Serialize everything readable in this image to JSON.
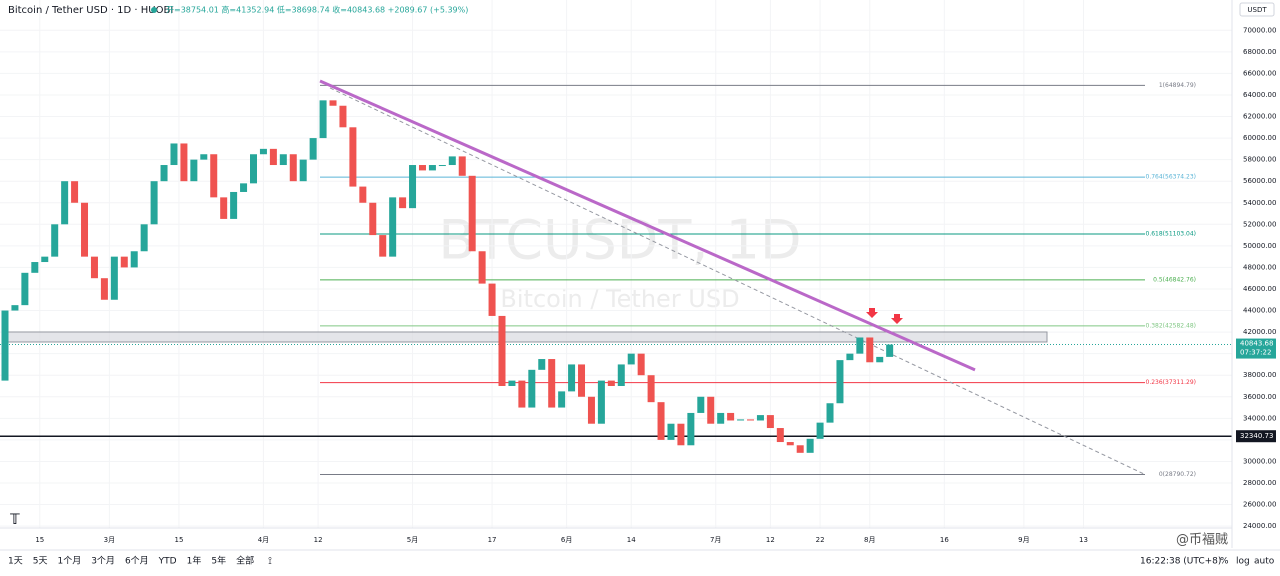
{
  "header": {
    "symbol": "Bitcoin / Tether USD · 1D · HUOBI",
    "ohlc": "开=38754.01 高=41352.94 低=38698.74 收=40843.68 +2089.67 (+5.39%)",
    "currency": "USDT"
  },
  "watermark": {
    "title": "BTCUSDT, 1D",
    "subtitle": "Bitcoin / Tether USD"
  },
  "chart_data": {
    "type": "candlestick",
    "first_open": 37500,
    "up_color": "#26a69a",
    "down_color": "#ef5350",
    "values": [
      44000,
      44500,
      47500,
      48500,
      49000,
      52000,
      56000,
      54000,
      49000,
      47000,
      45000,
      49000,
      48000,
      49500,
      52000,
      56000,
      57500,
      59500,
      56000,
      58000,
      58500,
      54500,
      52500,
      55000,
      55800,
      58500,
      59000,
      57500,
      58500,
      56000,
      58000,
      60000,
      63500,
      63000,
      61000,
      55500,
      54000,
      51000,
      49000,
      54500,
      53500,
      57500,
      57000,
      57500,
      57500,
      58300,
      56500,
      49500,
      46500,
      43500,
      37000,
      37500,
      35000,
      38500,
      39500,
      35000,
      36500,
      39000,
      36000,
      33500,
      37500,
      37000,
      39000,
      40000,
      38000,
      35500,
      32000,
      33500,
      31500,
      34500,
      36000,
      33500,
      34500,
      33800,
      33900,
      33800,
      34300,
      33100,
      31800,
      31500,
      30800,
      32100,
      33600,
      35400,
      39400,
      40000,
      41500,
      39200,
      39700,
      40843.68
    ],
    "ylim": [
      21970,
      72810
    ],
    "yticks": [
      {
        "value": 24000,
        "label": "24000.00"
      },
      {
        "value": 26000,
        "label": "26000.00"
      },
      {
        "value": 28000,
        "label": "28000.00"
      },
      {
        "value": 30000,
        "label": "30000.00"
      },
      {
        "value": 32000,
        "label": "32000.00"
      },
      {
        "value": 34000,
        "label": "34000.00"
      },
      {
        "value": 36000,
        "label": "36000.00"
      },
      {
        "value": 38000,
        "label": "38000.00"
      },
      {
        "value": 40000,
        "label": "40000.00"
      },
      {
        "value": 42000,
        "label": "42000.00"
      },
      {
        "value": 44000,
        "label": "44000.00"
      },
      {
        "value": 46000,
        "label": "46000.00"
      },
      {
        "value": 48000,
        "label": "48000.00"
      },
      {
        "value": 50000,
        "label": "50000.00"
      },
      {
        "value": 52000,
        "label": "52000.00"
      },
      {
        "value": 54000,
        "label": "54000.00"
      },
      {
        "value": 56000,
        "label": "56000.00"
      },
      {
        "value": 58000,
        "label": "58000.00"
      },
      {
        "value": 60000,
        "label": "60000.00"
      },
      {
        "value": 62000,
        "label": "62000.00"
      },
      {
        "value": 64000,
        "label": "64000.00"
      },
      {
        "value": 66000,
        "label": "66000.00"
      },
      {
        "value": 68000,
        "label": "68000.00"
      },
      {
        "value": 70000,
        "label": "70000.00"
      }
    ],
    "xticks": [
      {
        "value": 7,
        "label": "15"
      },
      {
        "value": 21,
        "label": "3月"
      },
      {
        "value": 35,
        "label": "15"
      },
      {
        "value": 52,
        "label": "4月"
      },
      {
        "value": 63,
        "label": "12"
      },
      {
        "value": 82,
        "label": "5月"
      },
      {
        "value": 98,
        "label": "17"
      },
      {
        "value": 113,
        "label": "6月"
      },
      {
        "value": 126,
        "label": "14"
      },
      {
        "value": 143,
        "label": "7月"
      },
      {
        "value": 154,
        "label": "12"
      },
      {
        "value": 164,
        "label": "22"
      },
      {
        "value": 174,
        "label": "8月"
      },
      {
        "value": 189,
        "label": "16"
      },
      {
        "value": 205,
        "label": "9月"
      },
      {
        "value": 217,
        "label": "13"
      }
    ],
    "fib_levels": [
      {
        "value": 64894.79,
        "label": "1(64894.79)",
        "color": "#787b86"
      },
      {
        "value": 56374.23,
        "label": "0.764(56374.23)",
        "color": "#5ab4d6"
      },
      {
        "value": 51103.04,
        "label": "0.618(51103.04)",
        "color": "#089981"
      },
      {
        "value": 46842.76,
        "label": "0.5(46842.76)",
        "color": "#4caf50"
      },
      {
        "value": 42582.48,
        "label": "0.382(42582.48)",
        "color": "#81c784"
      },
      {
        "value": 37311.29,
        "label": "0.236(37311.29)",
        "color": "#f23645"
      },
      {
        "value": 28790.72,
        "label": "0(28790.72)",
        "color": "#787b86"
      }
    ],
    "support": {
      "value": 32340.73,
      "label": "32340.73"
    },
    "zone": [
      41083,
      42011
    ],
    "last_price": {
      "value": 40843.68,
      "label": "40843.68",
      "countdown": "07:37:22"
    },
    "trendline": [
      65300,
      38500
    ],
    "dashed_line": [
      64650,
      28790
    ]
  },
  "toolbar": {
    "ranges": [
      "1天",
      "5天",
      "1个月",
      "3个月",
      "6个月",
      "YTD",
      "1年",
      "5年",
      "全部"
    ],
    "time": "16:22:38 (UTC+8)",
    "pct": "%",
    "log": "log",
    "auto": "auto"
  },
  "credit": "@币褔贼"
}
